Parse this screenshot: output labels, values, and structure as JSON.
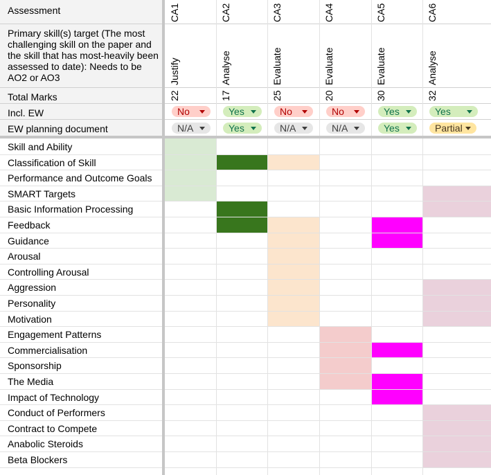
{
  "header_rows": {
    "assessment_label": "Assessment",
    "primary_skill_label": "Primary skill(s) target (The most challenging skill on the paper and the skill that has most-heavily been assessed to date): Needs to be AO2 or AO3",
    "total_marks_label": "Total Marks",
    "incl_ew_label": "Incl. EW",
    "ew_planning_label": "EW planning document"
  },
  "assessments": [
    {
      "id": "CA1",
      "skill": "Justify",
      "marks": "22",
      "incl_ew": "No",
      "ew_planning": "N/A"
    },
    {
      "id": "CA2",
      "skill": "Analyse",
      "marks": "17",
      "incl_ew": "Yes",
      "ew_planning": "Yes"
    },
    {
      "id": "CA3",
      "skill": "Evaluate",
      "marks": "25",
      "incl_ew": "No",
      "ew_planning": "N/A"
    },
    {
      "id": "CA4",
      "skill": "Evaluate",
      "marks": "20",
      "incl_ew": "No",
      "ew_planning": "N/A"
    },
    {
      "id": "CA5",
      "skill": "Evaluate",
      "marks": "30",
      "incl_ew": "Yes",
      "ew_planning": "Yes"
    },
    {
      "id": "CA6",
      "skill": "Analyse",
      "marks": "32",
      "incl_ew": "Yes",
      "ew_planning": "Partial"
    }
  ],
  "topics": [
    "Skill and Ability",
    "Classification of Skill",
    "Performance and Outcome Goals",
    "SMART Targets",
    "Basic Information Processing",
    "Feedback",
    "Guidance",
    "Arousal",
    "Controlling Arousal",
    "Aggression",
    "Personality",
    "Motivation",
    "Engagement Patterns",
    "Commercialisation",
    "Sponsorship",
    "The Media",
    "Impact of Technology",
    "Conduct of Performers",
    "Contract to Compete",
    "Anabolic Steroids",
    "Beta Blockers"
  ],
  "colors": {
    "light_green": "#d9ead3",
    "dark_green": "#38761d",
    "peach": "#fce5cd",
    "magenta": "#ff00ff",
    "rose": "#f4cccc",
    "mauve": "#ead1dc"
  },
  "fills": [
    {
      "col": 0,
      "rows": [
        0,
        1,
        2,
        3
      ],
      "color": "light_green"
    },
    {
      "col": 1,
      "rows": [
        1,
        4,
        5
      ],
      "color": "dark_green"
    },
    {
      "col": 2,
      "rows": [
        1,
        5,
        6,
        7,
        8,
        9,
        10,
        11
      ],
      "color": "peach"
    },
    {
      "col": 3,
      "rows": [
        12,
        13,
        14,
        15
      ],
      "color": "rose"
    },
    {
      "col": 4,
      "rows": [
        5,
        6,
        13,
        15,
        16
      ],
      "color": "magenta"
    },
    {
      "col": 5,
      "rows": [
        3,
        4,
        9,
        10,
        11,
        17,
        18,
        19,
        20
      ],
      "color": "mauve"
    }
  ]
}
